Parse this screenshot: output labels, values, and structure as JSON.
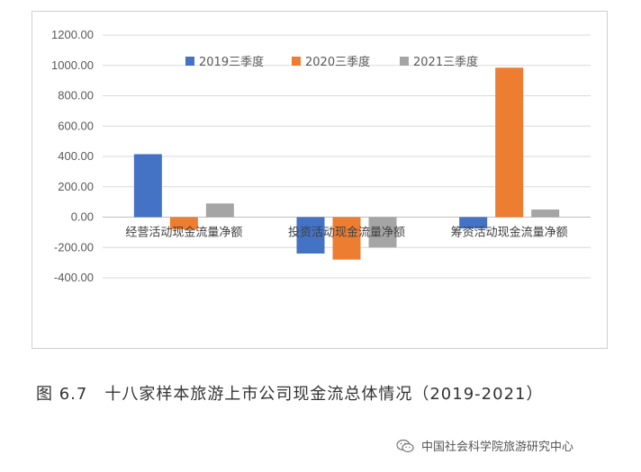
{
  "chart_data": {
    "type": "bar",
    "categories": [
      "经营活动现金流量净额",
      "投资活动现金流量净额",
      "筹资活动现金流量净额"
    ],
    "series": [
      {
        "name": "2019三季度",
        "color": "#4472c4",
        "values": [
          415,
          -240,
          -75
        ]
      },
      {
        "name": "2020三季度",
        "color": "#ed7d31",
        "values": [
          -80,
          -280,
          985
        ]
      },
      {
        "name": "2021三季度",
        "color": "#a5a5a5",
        "values": [
          90,
          -200,
          50
        ]
      }
    ],
    "ylim": [
      -400,
      1200
    ],
    "yticks": [
      "1200.00",
      "1000.00",
      "800.00",
      "600.00",
      "400.00",
      "200.00",
      "0.00",
      "-200.00",
      "-400.00"
    ],
    "ytick_values": [
      1200,
      1000,
      800,
      600,
      400,
      200,
      0,
      -200,
      -400
    ],
    "grid": true,
    "legend_position": "top"
  },
  "caption": {
    "label": "图 6.7",
    "text": "十八家样本旅游上市公司现金流总体情况（2019-2021）"
  },
  "watermark": {
    "text": "中国社会科学院旅游研究中心",
    "icon": "wechat-icon"
  }
}
